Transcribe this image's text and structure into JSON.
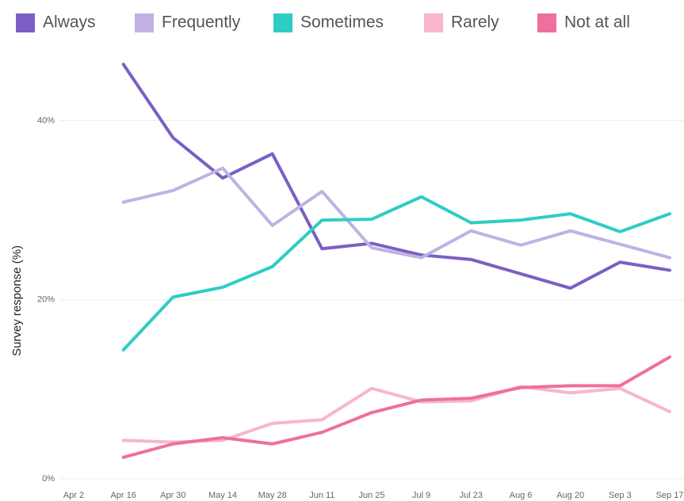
{
  "chart_data": {
    "type": "line",
    "y_label": "Survey response (%)",
    "categories": [
      "Apr 2",
      "Apr 16",
      "Apr 30",
      "May 14",
      "May 28",
      "Jun 11",
      "Jun 25",
      "Jul 9",
      "Jul 23",
      "Aug 6",
      "Aug 20",
      "Sep 3",
      "Sep 17"
    ],
    "series": [
      {
        "name": "Always",
        "color": "#7b5fc4",
        "values": [
          null,
          46.3,
          38.1,
          33.6,
          36.3,
          25.7,
          26.3,
          25.0,
          24.5,
          22.9,
          21.3,
          24.2,
          23.3
        ]
      },
      {
        "name": "Frequently",
        "color": "#bfb2e3",
        "values": [
          null,
          30.9,
          32.2,
          34.7,
          28.3,
          32.1,
          25.8,
          24.7,
          27.7,
          26.1,
          27.7,
          26.2,
          24.7
        ]
      },
      {
        "name": "Sometimes",
        "color": "#2dcdc4",
        "values": [
          null,
          14.4,
          20.3,
          21.4,
          23.7,
          28.9,
          29.0,
          31.5,
          28.6,
          28.9,
          29.6,
          27.6,
          29.6
        ]
      },
      {
        "name": "Rarely",
        "color": "#f7b6cc",
        "values": [
          null,
          4.3,
          4.1,
          4.3,
          6.2,
          6.6,
          10.1,
          8.6,
          8.7,
          10.3,
          9.6,
          10.1,
          7.5
        ]
      },
      {
        "name": "Not at all",
        "color": "#ef6f9e",
        "values": [
          null,
          2.4,
          3.9,
          4.6,
          3.9,
          5.2,
          7.4,
          8.8,
          9.0,
          10.2,
          10.4,
          10.4,
          13.6
        ]
      }
    ],
    "ylim": [
      0,
      48
    ],
    "yticks": [
      {
        "value": 0,
        "label": "0%"
      },
      {
        "value": 20,
        "label": "20%"
      },
      {
        "value": 40,
        "label": "40%"
      }
    ],
    "grid": true
  }
}
